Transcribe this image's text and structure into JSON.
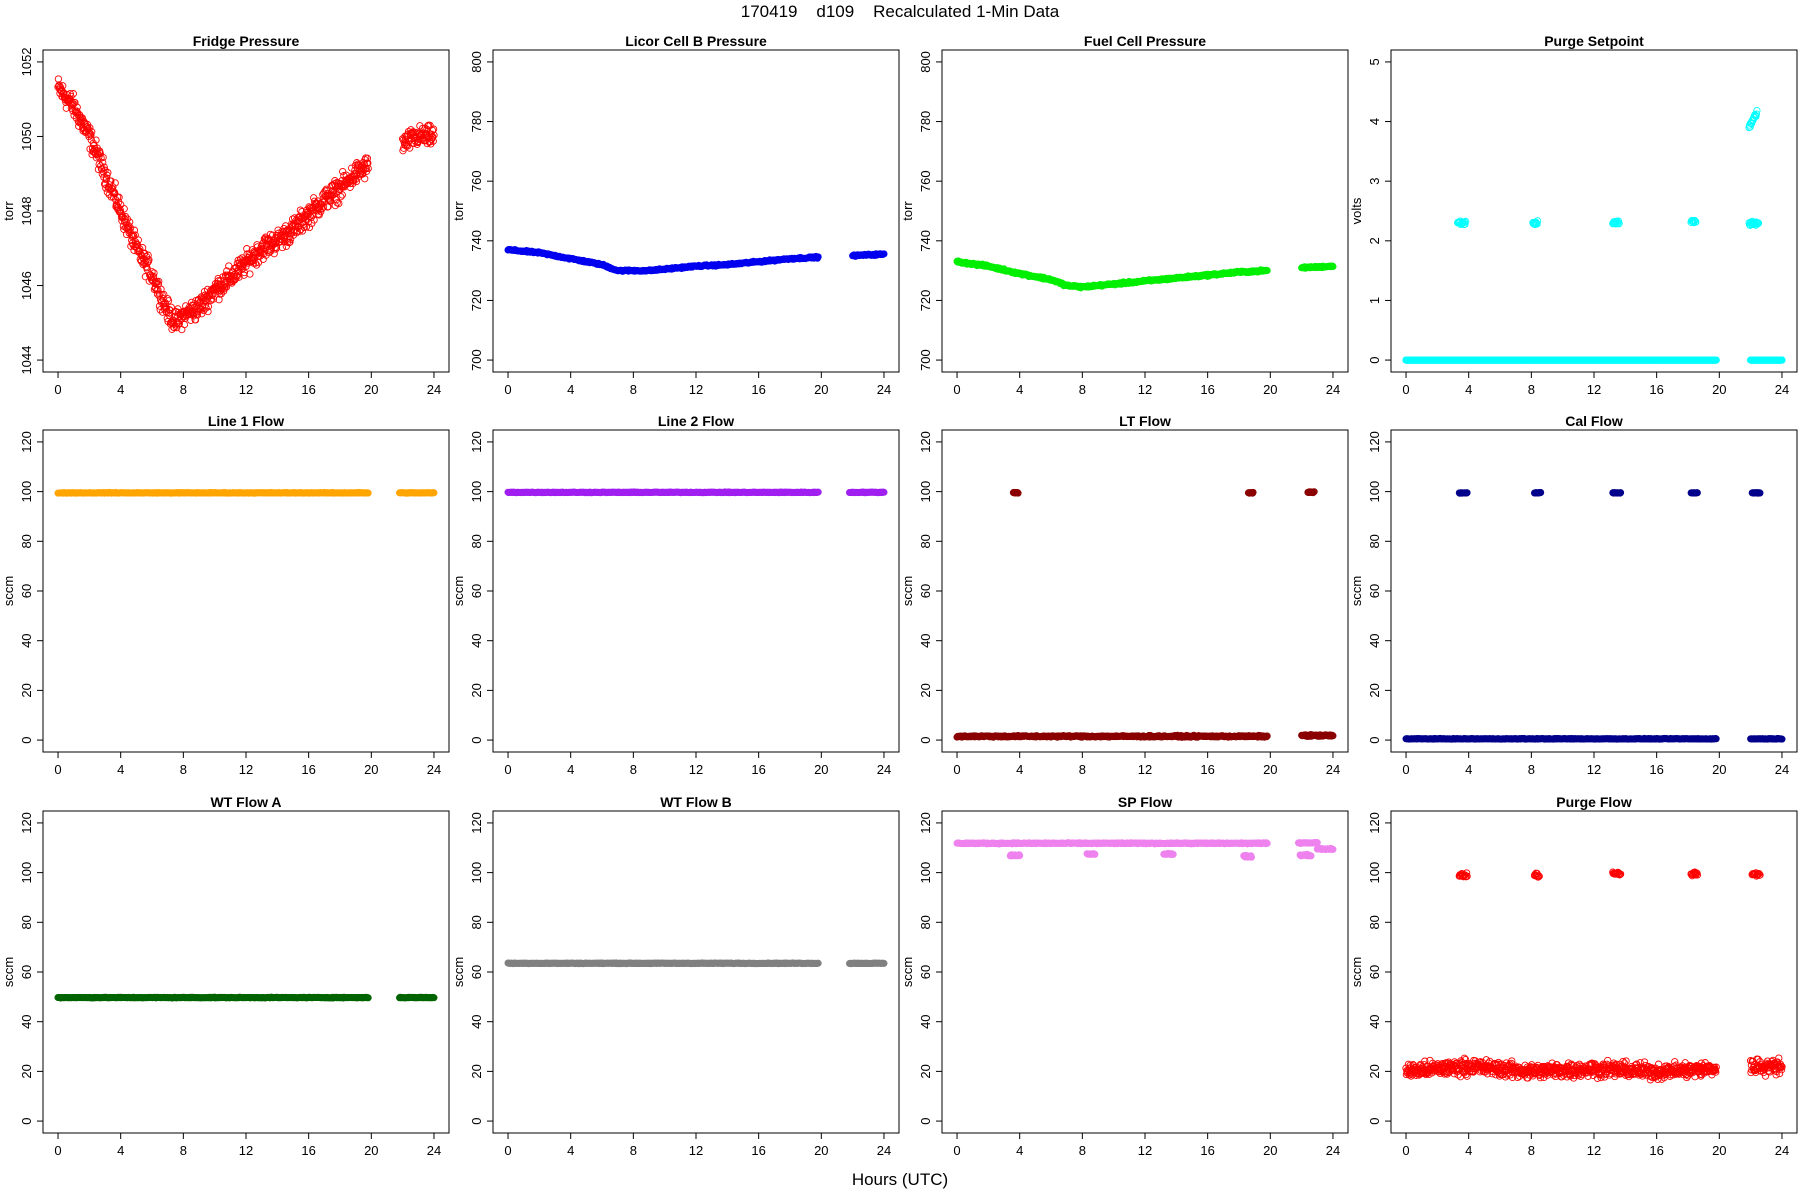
{
  "page": {
    "title": "170419    d109    Recalculated 1-Min Data",
    "xlabel": "Hours (UTC)"
  },
  "chart_data": [
    {
      "type": "scatter",
      "title": "Fridge Pressure",
      "ylabel": "torr",
      "xlim": [
        0,
        24
      ],
      "ylim": [
        1044,
        1052
      ],
      "xticks": [
        0,
        4,
        8,
        12,
        16,
        20,
        24
      ],
      "yticks": [
        1044,
        1046,
        1048,
        1050,
        1052
      ],
      "marker": "open",
      "color": "#ff0000",
      "series": [
        {
          "segments": [
            {
              "x": [
                0,
                1,
                2,
                3,
                4,
                5,
                6,
                7,
                7.5,
                8,
                9,
                10,
                11,
                12,
                13,
                14,
                15,
                16,
                17,
                18,
                19,
                19.8
              ],
              "y": [
                1051.3,
                1050.8,
                1050.0,
                1049.0,
                1048.0,
                1047.0,
                1046.3,
                1045.3,
                1045.0,
                1045.2,
                1045.4,
                1045.9,
                1046.2,
                1046.6,
                1047.0,
                1047.2,
                1047.5,
                1047.9,
                1048.3,
                1048.6,
                1049.0,
                1049.2
              ],
              "jitter": 0.45
            },
            {
              "x": [
                22,
                23,
                24
              ],
              "y": [
                1049.8,
                1050.0,
                1050.0
              ],
              "jitter": 0.4
            }
          ]
        }
      ]
    },
    {
      "type": "scatter",
      "title": "Licor Cell B Pressure",
      "ylabel": "torr",
      "xlim": [
        0,
        24
      ],
      "ylim": [
        700,
        800
      ],
      "xticks": [
        0,
        4,
        8,
        12,
        16,
        20,
        24
      ],
      "yticks": [
        700,
        720,
        740,
        760,
        780,
        800
      ],
      "marker": "filled",
      "color": "#0000ee",
      "series": [
        {
          "segments": [
            {
              "x": [
                0,
                2,
                4,
                5,
                6,
                7,
                8,
                9,
                10,
                12,
                14,
                16,
                18,
                19.8
              ],
              "y": [
                737,
                736,
                734,
                733,
                732,
                730,
                730,
                730,
                730.5,
                731.5,
                732,
                733,
                734,
                734.5
              ],
              "jitter": 0.4
            },
            {
              "x": [
                22,
                23,
                24
              ],
              "y": [
                735,
                735.3,
                735.5
              ],
              "jitter": 0.4
            }
          ]
        }
      ]
    },
    {
      "type": "scatter",
      "title": "Fuel Cell Pressure",
      "ylabel": "torr",
      "xlim": [
        0,
        24
      ],
      "ylim": [
        700,
        800
      ],
      "xticks": [
        0,
        4,
        8,
        12,
        16,
        20,
        24
      ],
      "yticks": [
        700,
        720,
        740,
        760,
        780,
        800
      ],
      "marker": "filled",
      "color": "#00ee00",
      "series": [
        {
          "segments": [
            {
              "x": [
                0,
                2,
                4,
                5,
                6,
                7,
                8,
                9,
                10,
                12,
                14,
                16,
                18,
                19.8
              ],
              "y": [
                733,
                731.5,
                729,
                728,
                727,
                725,
                724.5,
                725,
                725.5,
                726.5,
                727.5,
                728.5,
                729.5,
                730
              ],
              "jitter": 0.5
            },
            {
              "x": [
                22,
                23,
                24
              ],
              "y": [
                731,
                731.2,
                731.5
              ],
              "jitter": 0.4
            }
          ]
        }
      ]
    },
    {
      "type": "scatter",
      "title": "Purge Setpoint",
      "ylabel": "volts",
      "xlim": [
        0,
        24
      ],
      "ylim": [
        0,
        5
      ],
      "xticks": [
        0,
        4,
        8,
        12,
        16,
        20,
        24
      ],
      "yticks": [
        0,
        1,
        2,
        3,
        4,
        5
      ],
      "marker": "open",
      "color": "#00ffff",
      "series": [
        {
          "segments": [
            {
              "x": [
                0,
                19.8
              ],
              "y": [
                0,
                0
              ],
              "jitter": 0
            },
            {
              "x": [
                22,
                24
              ],
              "y": [
                0,
                0
              ],
              "jitter": 0
            }
          ],
          "clusters": [
            {
              "x": [
                3.3,
                3.8
              ],
              "y": [
                2.3,
                2.3
              ],
              "jitter": 0.05
            },
            {
              "x": [
                8.1,
                8.4
              ],
              "y": [
                2.3,
                2.3
              ],
              "jitter": 0.05
            },
            {
              "x": [
                13.2,
                13.6
              ],
              "y": [
                2.3,
                2.3
              ],
              "jitter": 0.04
            },
            {
              "x": [
                18.2,
                18.5
              ],
              "y": [
                2.32,
                2.32
              ],
              "jitter": 0.05
            },
            {
              "x": [
                21.9,
                22.5
              ],
              "y": [
                2.3,
                2.3
              ],
              "jitter": 0.05
            },
            {
              "x": [
                21.9,
                22.4
              ],
              "y": [
                3.9,
                4.15
              ],
              "jitter": 0.05
            }
          ]
        }
      ]
    },
    {
      "type": "scatter",
      "title": "Line 1 Flow",
      "ylabel": "sccm",
      "xlim": [
        0,
        24
      ],
      "ylim": [
        0,
        120
      ],
      "xticks": [
        0,
        4,
        8,
        12,
        16,
        20,
        24
      ],
      "yticks": [
        0,
        20,
        40,
        60,
        80,
        100,
        120
      ],
      "marker": "filled",
      "color": "#ffa500",
      "series": [
        {
          "segments": [
            {
              "x": [
                0,
                19.8
              ],
              "y": [
                99.5,
                99.5
              ],
              "jitter": 0.2
            },
            {
              "x": [
                21.8,
                24
              ],
              "y": [
                99.5,
                99.5
              ],
              "jitter": 0.2
            }
          ]
        }
      ]
    },
    {
      "type": "scatter",
      "title": "Line 2 Flow",
      "ylabel": "sccm",
      "xlim": [
        0,
        24
      ],
      "ylim": [
        0,
        120
      ],
      "xticks": [
        0,
        4,
        8,
        12,
        16,
        20,
        24
      ],
      "yticks": [
        0,
        20,
        40,
        60,
        80,
        100,
        120
      ],
      "marker": "filled",
      "color": "#a020f0",
      "series": [
        {
          "segments": [
            {
              "x": [
                0,
                19.8
              ],
              "y": [
                99.7,
                99.7
              ],
              "jitter": 0.2
            },
            {
              "x": [
                21.8,
                24
              ],
              "y": [
                99.7,
                99.7
              ],
              "jitter": 0.2
            }
          ]
        }
      ]
    },
    {
      "type": "scatter",
      "title": "LT Flow",
      "ylabel": "sccm",
      "xlim": [
        0,
        24
      ],
      "ylim": [
        0,
        120
      ],
      "xticks": [
        0,
        4,
        8,
        12,
        16,
        20,
        24
      ],
      "yticks": [
        0,
        20,
        40,
        60,
        80,
        100,
        120
      ],
      "marker": "filled",
      "color": "#8b0000",
      "series": [
        {
          "segments": [
            {
              "x": [
                0,
                19.8
              ],
              "y": [
                1.5,
                1.5
              ],
              "jitter": 0.5
            },
            {
              "x": [
                22,
                24
              ],
              "y": [
                1.8,
                1.8
              ],
              "jitter": 0.6
            }
          ],
          "clusters": [
            {
              "x": [
                3.6,
                3.9
              ],
              "y": [
                99.5,
                99.5
              ],
              "jitter": 0.3
            },
            {
              "x": [
                18.6,
                18.9
              ],
              "y": [
                99.5,
                99.5
              ],
              "jitter": 0.3
            },
            {
              "x": [
                22.4,
                22.8
              ],
              "y": [
                99.8,
                99.8
              ],
              "jitter": 0.3
            }
          ]
        }
      ]
    },
    {
      "type": "scatter",
      "title": "Cal Flow",
      "ylabel": "sccm",
      "xlim": [
        0,
        24
      ],
      "ylim": [
        0,
        120
      ],
      "xticks": [
        0,
        4,
        8,
        12,
        16,
        20,
        24
      ],
      "yticks": [
        0,
        20,
        40,
        60,
        80,
        100,
        120
      ],
      "marker": "filled",
      "color": "#00008b",
      "series": [
        {
          "segments": [
            {
              "x": [
                0,
                19.8
              ],
              "y": [
                0.5,
                0.5
              ],
              "jitter": 0.2
            },
            {
              "x": [
                22,
                24
              ],
              "y": [
                0.5,
                0.5
              ],
              "jitter": 0.2
            }
          ],
          "clusters": [
            {
              "x": [
                3.4,
                3.9
              ],
              "y": [
                99.5,
                99.5
              ],
              "jitter": 0.2
            },
            {
              "x": [
                8.2,
                8.6
              ],
              "y": [
                99.5,
                99.5
              ],
              "jitter": 0.2
            },
            {
              "x": [
                13.2,
                13.7
              ],
              "y": [
                99.5,
                99.5
              ],
              "jitter": 0.2
            },
            {
              "x": [
                18.2,
                18.6
              ],
              "y": [
                99.5,
                99.5
              ],
              "jitter": 0.2
            },
            {
              "x": [
                22.1,
                22.6
              ],
              "y": [
                99.5,
                99.5
              ],
              "jitter": 0.2
            }
          ]
        }
      ]
    },
    {
      "type": "scatter",
      "title": "WT Flow A",
      "ylabel": "sccm",
      "xlim": [
        0,
        24
      ],
      "ylim": [
        0,
        120
      ],
      "xticks": [
        0,
        4,
        8,
        12,
        16,
        20,
        24
      ],
      "yticks": [
        0,
        20,
        40,
        60,
        80,
        100,
        120
      ],
      "marker": "filled",
      "color": "#006400",
      "series": [
        {
          "segments": [
            {
              "x": [
                0,
                19.8
              ],
              "y": [
                49.7,
                49.7
              ],
              "jitter": 0.2
            },
            {
              "x": [
                21.8,
                24
              ],
              "y": [
                49.7,
                49.7
              ],
              "jitter": 0.2
            }
          ]
        }
      ]
    },
    {
      "type": "scatter",
      "title": "WT Flow B",
      "ylabel": "sccm",
      "xlim": [
        0,
        24
      ],
      "ylim": [
        0,
        120
      ],
      "xticks": [
        0,
        4,
        8,
        12,
        16,
        20,
        24
      ],
      "yticks": [
        0,
        20,
        40,
        60,
        80,
        100,
        120
      ],
      "marker": "filled",
      "color": "#808080",
      "series": [
        {
          "segments": [
            {
              "x": [
                0,
                19.8
              ],
              "y": [
                63.5,
                63.5
              ],
              "jitter": 0.2
            },
            {
              "x": [
                21.8,
                24
              ],
              "y": [
                63.5,
                63.5
              ],
              "jitter": 0.2
            }
          ]
        }
      ]
    },
    {
      "type": "scatter",
      "title": "SP Flow",
      "ylabel": "sccm",
      "xlim": [
        0,
        24
      ],
      "ylim": [
        0,
        120
      ],
      "xticks": [
        0,
        4,
        8,
        12,
        16,
        20,
        24
      ],
      "yticks": [
        0,
        20,
        40,
        60,
        80,
        100,
        120
      ],
      "marker": "filled",
      "color": "#ee82ee",
      "series": [
        {
          "segments": [
            {
              "x": [
                0,
                19.8
              ],
              "y": [
                111.8,
                111.8
              ],
              "jitter": 0.3
            },
            {
              "x": [
                21.8,
                23.0
              ],
              "y": [
                112,
                112
              ],
              "jitter": 0.3
            },
            {
              "x": [
                23.0,
                24
              ],
              "y": [
                109.5,
                109.5
              ],
              "jitter": 0.3
            }
          ],
          "clusters": [
            {
              "x": [
                3.4,
                4.0
              ],
              "y": [
                107,
                107
              ],
              "jitter": 0.6
            },
            {
              "x": [
                8.3,
                8.8
              ],
              "y": [
                107.5,
                107.5
              ],
              "jitter": 0.3
            },
            {
              "x": [
                13.2,
                13.8
              ],
              "y": [
                107.5,
                107.5
              ],
              "jitter": 0.3
            },
            {
              "x": [
                18.3,
                18.8
              ],
              "y": [
                106.5,
                106.5
              ],
              "jitter": 0.6
            },
            {
              "x": [
                21.9,
                22.6
              ],
              "y": [
                107,
                107
              ],
              "jitter": 0.6
            }
          ]
        }
      ]
    },
    {
      "type": "scatter",
      "title": "Purge Flow",
      "ylabel": "sccm",
      "xlim": [
        0,
        24
      ],
      "ylim": [
        0,
        120
      ],
      "xticks": [
        0,
        4,
        8,
        12,
        16,
        20,
        24
      ],
      "yticks": [
        0,
        20,
        40,
        60,
        80,
        100,
        120
      ],
      "marker": "open",
      "color": "#ff0000",
      "series": [
        {
          "segments": [
            {
              "x": [
                0,
                2,
                4,
                8,
                12,
                16,
                19.8
              ],
              "y": [
                20,
                21,
                22,
                20,
                21,
                20,
                21
              ],
              "jitter": 4.5
            },
            {
              "x": [
                22,
                24
              ],
              "y": [
                22,
                22
              ],
              "jitter": 4.5
            }
          ],
          "clusters": [
            {
              "x": [
                3.4,
                3.9
              ],
              "y": [
                99,
                99
              ],
              "jitter": 1.2
            },
            {
              "x": [
                8.2,
                8.5
              ],
              "y": [
                99,
                99
              ],
              "jitter": 1.2
            },
            {
              "x": [
                13.2,
                13.7
              ],
              "y": [
                99.5,
                99.5
              ],
              "jitter": 1.2
            },
            {
              "x": [
                18.2,
                18.6
              ],
              "y": [
                99.5,
                99.5
              ],
              "jitter": 1.2
            },
            {
              "x": [
                22.1,
                22.6
              ],
              "y": [
                99.5,
                99.5
              ],
              "jitter": 1.2
            }
          ]
        }
      ]
    }
  ]
}
